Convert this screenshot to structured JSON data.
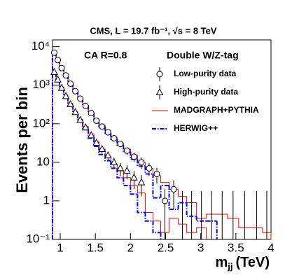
{
  "chart_data": {
    "type": "histogram",
    "title": "CMS, L = 19.7 fb⁻¹, √s = 8 TeV",
    "annotations": [
      "CA R=0.8",
      "Double W/Z-tag"
    ],
    "x_label": {
      "symbol": "m",
      "subscript": "jj",
      "unit": "(TeV)"
    },
    "y_label": "Events per bin",
    "log_y": true,
    "xlim": [
      0.89,
      4
    ],
    "ylim": [
      0.1,
      15000
    ],
    "xticks": [
      1,
      1.5,
      2,
      2.5,
      3,
      3.5,
      4
    ],
    "yticks": [
      {
        "value": 0.1,
        "label": "10⁻¹"
      },
      1,
      10,
      {
        "value": 100,
        "label": "10²"
      },
      {
        "value": 1000,
        "label": "10³"
      },
      {
        "value": 10000,
        "label": "10⁴"
      }
    ],
    "bins": [
      0.89,
      0.94,
      0.99,
      1.05,
      1.11,
      1.18,
      1.25,
      1.32,
      1.4,
      1.48,
      1.55,
      1.64,
      1.72,
      1.81,
      1.9,
      2.0,
      2.1,
      2.21,
      2.32,
      2.43,
      2.55,
      2.68,
      2.8,
      2.94,
      3.08,
      3.23,
      3.38,
      3.54,
      3.71,
      3.88,
      4.0
    ],
    "series": [
      {
        "name": "Low-purity data",
        "marker": "circle",
        "color": "#000000",
        "values": [
          7000,
          4500,
          2800,
          1800,
          1100,
          700,
          450,
          290,
          190,
          120,
          85,
          60,
          42,
          30,
          20,
          14,
          10,
          7,
          5,
          1,
          2,
          0,
          0,
          0,
          0,
          0,
          0,
          0,
          0,
          0
        ],
        "errors": [
          84,
          67,
          53,
          42,
          33,
          26,
          21,
          17,
          14,
          11,
          9,
          8,
          6.5,
          5.5,
          4.5,
          3.7,
          3.2,
          2.6,
          2.2,
          1,
          1.4,
          1.8,
          1.8,
          1.8,
          1.8,
          1.8,
          1.8,
          1.8,
          1.8,
          1.8
        ]
      },
      {
        "name": "High-purity data",
        "marker": "triangle",
        "color": "#000000",
        "values": [
          2200,
          1400,
          850,
          520,
          320,
          200,
          125,
          80,
          50,
          32,
          22,
          15,
          10,
          7,
          6,
          4,
          3,
          null,
          null,
          null,
          null,
          null,
          null,
          null,
          null,
          null,
          null,
          null,
          null,
          null
        ],
        "errors": [
          47,
          37,
          29,
          23,
          18,
          14,
          11,
          9,
          7,
          5.7,
          4.7,
          3.9,
          3.2,
          2.6,
          2.4,
          2,
          1.7,
          null,
          null,
          null,
          null,
          null,
          null,
          null,
          null,
          null,
          null,
          null,
          null,
          null
        ]
      },
      {
        "name": "MADGRAPH+PYTHIA",
        "color": "#ff0000",
        "style": "solid",
        "histograms": [
          [
            7500,
            4700,
            3000,
            1900,
            1200,
            750,
            480,
            310,
            200,
            130,
            90,
            62,
            44,
            32,
            22,
            15,
            10,
            7,
            4.5,
            3,
            2,
            1.3,
            0.9,
            0.35,
            0.45,
            0.45,
            0.35,
            0.2,
            0.2,
            0.15
          ],
          [
            2300,
            1450,
            900,
            560,
            340,
            210,
            130,
            85,
            55,
            35,
            22,
            14,
            9,
            6,
            4,
            2.5,
            1.6,
            0.5,
            0.3,
            0.15,
            0.35,
            0.25,
            0.15,
            0.2,
            null,
            null,
            null,
            null,
            null,
            null
          ]
        ]
      },
      {
        "name": "HERWIG++",
        "color": "#0000ff",
        "style": "dashdot",
        "histograms": [
          [
            7200,
            4600,
            2900,
            1850,
            1150,
            720,
            460,
            300,
            190,
            125,
            85,
            58,
            40,
            28,
            19,
            12,
            8,
            5,
            1.2,
            2.5,
            0.6,
            0.9,
            0.4,
            0.3,
            0.3,
            null,
            null,
            null,
            null,
            null
          ],
          [
            2100,
            1350,
            820,
            500,
            300,
            180,
            110,
            70,
            42,
            26,
            16,
            11,
            7,
            4,
            2.5,
            1.5,
            0.5,
            0.3,
            0.15,
            null,
            null,
            null,
            null,
            null,
            null,
            null,
            null,
            null,
            null,
            null
          ]
        ]
      }
    ]
  }
}
